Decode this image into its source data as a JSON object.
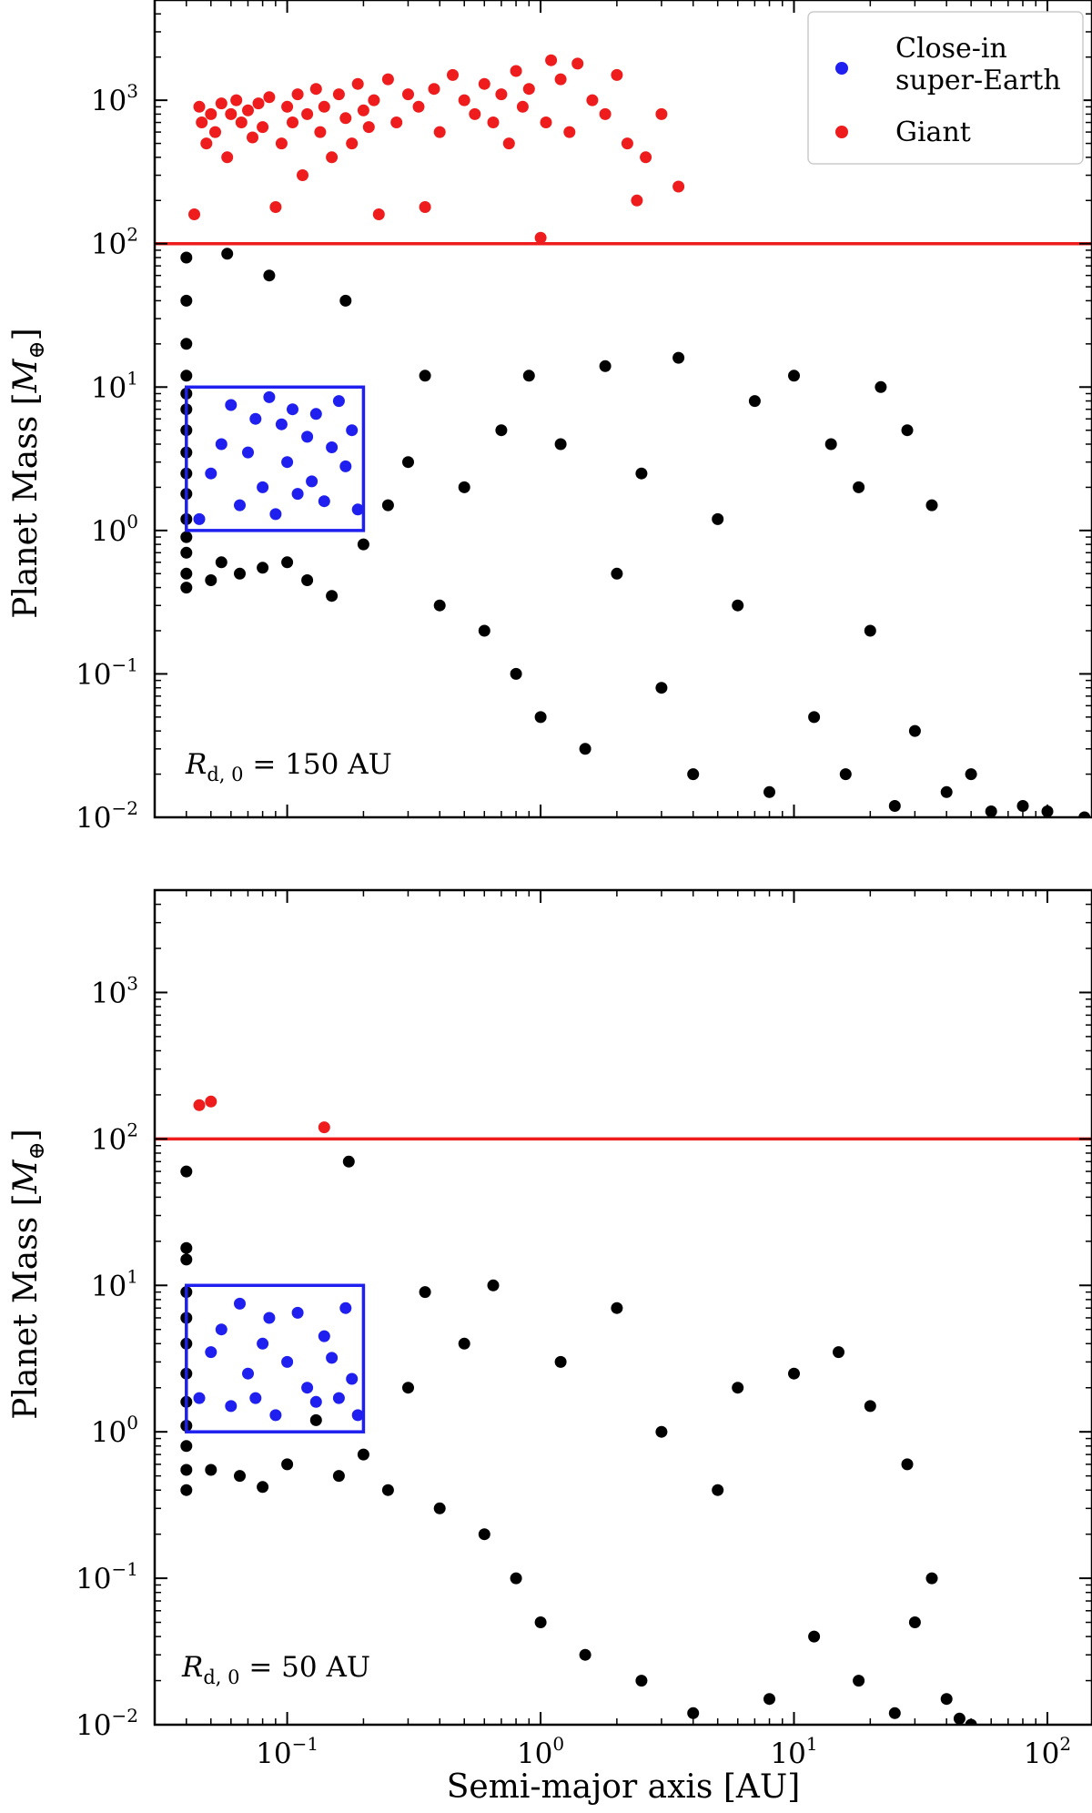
{
  "chart_data": [
    {
      "type": "scatter",
      "panel": "top",
      "xscale": "log",
      "yscale": "log",
      "xlim": [
        0.03,
        150
      ],
      "ylim": [
        0.01,
        5000
      ],
      "ylabel_parts": [
        "Planet Mass [",
        "M",
        "⊕",
        "]"
      ],
      "annotation": {
        "r_sym": "R",
        "r_sub": "d, 0",
        "text": " = 150 AU"
      },
      "hline": {
        "y": 100,
        "color": "#ee1c1c"
      },
      "box": {
        "x": [
          0.04,
          0.2
        ],
        "y": [
          1,
          10
        ],
        "color": "#1f1ff0"
      },
      "yticks": [
        {
          "base": "10",
          "exp": "−2",
          "value": 0.01
        },
        {
          "base": "10",
          "exp": "−1",
          "value": 0.1
        },
        {
          "base": "10",
          "exp": "0",
          "value": 1
        },
        {
          "base": "10",
          "exp": "1",
          "value": 10
        },
        {
          "base": "10",
          "exp": "2",
          "value": 100
        },
        {
          "base": "10",
          "exp": "3",
          "value": 1000
        }
      ],
      "legend": [
        {
          "lines": [
            "Close-in",
            "super-Earth"
          ],
          "color": "#1f1ff0"
        },
        {
          "lines": [
            "Giant"
          ],
          "color": "#ee1c1c"
        }
      ],
      "series": [
        {
          "color": "#ee1c1c",
          "points": [
            [
              0.043,
              160
            ],
            [
              0.045,
              900
            ],
            [
              0.046,
              700
            ],
            [
              0.048,
              500
            ],
            [
              0.05,
              800
            ],
            [
              0.052,
              600
            ],
            [
              0.055,
              950
            ],
            [
              0.058,
              400
            ],
            [
              0.06,
              800
            ],
            [
              0.063,
              1000
            ],
            [
              0.066,
              700
            ],
            [
              0.07,
              850
            ],
            [
              0.073,
              550
            ],
            [
              0.077,
              950
            ],
            [
              0.08,
              650
            ],
            [
              0.085,
              1050
            ],
            [
              0.09,
              180
            ],
            [
              0.095,
              500
            ],
            [
              0.1,
              900
            ],
            [
              0.105,
              700
            ],
            [
              0.11,
              1100
            ],
            [
              0.115,
              300
            ],
            [
              0.12,
              800
            ],
            [
              0.13,
              1200
            ],
            [
              0.135,
              600
            ],
            [
              0.14,
              900
            ],
            [
              0.15,
              400
            ],
            [
              0.16,
              1100
            ],
            [
              0.17,
              750
            ],
            [
              0.18,
              500
            ],
            [
              0.19,
              1300
            ],
            [
              0.2,
              850
            ],
            [
              0.21,
              650
            ],
            [
              0.22,
              1000
            ],
            [
              0.23,
              160
            ],
            [
              0.25,
              1400
            ],
            [
              0.27,
              700
            ],
            [
              0.3,
              1100
            ],
            [
              0.33,
              900
            ],
            [
              0.35,
              180
            ],
            [
              0.38,
              1200
            ],
            [
              0.4,
              600
            ],
            [
              0.45,
              1500
            ],
            [
              0.5,
              1000
            ],
            [
              0.55,
              800
            ],
            [
              0.6,
              1300
            ],
            [
              0.65,
              700
            ],
            [
              0.7,
              1100
            ],
            [
              0.75,
              500
            ],
            [
              0.8,
              1600
            ],
            [
              0.85,
              900
            ],
            [
              0.9,
              1200
            ],
            [
              1.0,
              110
            ],
            [
              1.05,
              700
            ],
            [
              1.1,
              1900
            ],
            [
              1.2,
              1400
            ],
            [
              1.3,
              600
            ],
            [
              1.4,
              1800
            ],
            [
              1.6,
              1000
            ],
            [
              1.8,
              800
            ],
            [
              2.0,
              1500
            ],
            [
              2.2,
              500
            ],
            [
              2.4,
              200
            ],
            [
              2.6,
              400
            ],
            [
              3.0,
              800
            ],
            [
              3.5,
              250
            ]
          ]
        },
        {
          "color": "#1f1ff0",
          "points": [
            [
              0.045,
              1.2
            ],
            [
              0.05,
              2.5
            ],
            [
              0.055,
              4.0
            ],
            [
              0.06,
              7.5
            ],
            [
              0.065,
              1.5
            ],
            [
              0.07,
              3.5
            ],
            [
              0.075,
              6.0
            ],
            [
              0.08,
              2.0
            ],
            [
              0.085,
              8.5
            ],
            [
              0.09,
              1.3
            ],
            [
              0.095,
              5.5
            ],
            [
              0.1,
              3.0
            ],
            [
              0.105,
              7.0
            ],
            [
              0.11,
              1.8
            ],
            [
              0.12,
              4.5
            ],
            [
              0.125,
              2.2
            ],
            [
              0.13,
              6.5
            ],
            [
              0.14,
              1.6
            ],
            [
              0.15,
              3.8
            ],
            [
              0.16,
              8.0
            ],
            [
              0.17,
              2.8
            ],
            [
              0.18,
              5.0
            ],
            [
              0.19,
              1.4
            ]
          ]
        },
        {
          "color": "#000000",
          "points": [
            [
              0.04,
              0.4
            ],
            [
              0.04,
              0.5
            ],
            [
              0.04,
              0.7
            ],
            [
              0.04,
              0.9
            ],
            [
              0.04,
              1.2
            ],
            [
              0.04,
              1.8
            ],
            [
              0.04,
              2.5
            ],
            [
              0.04,
              3.5
            ],
            [
              0.04,
              5.0
            ],
            [
              0.04,
              7.0
            ],
            [
              0.04,
              9.0
            ],
            [
              0.04,
              12
            ],
            [
              0.04,
              20
            ],
            [
              0.04,
              40
            ],
            [
              0.04,
              80
            ],
            [
              0.05,
              0.45
            ],
            [
              0.055,
              0.6
            ],
            [
              0.058,
              85
            ],
            [
              0.065,
              0.5
            ],
            [
              0.08,
              0.55
            ],
            [
              0.085,
              60
            ],
            [
              0.1,
              0.6
            ],
            [
              0.12,
              0.45
            ],
            [
              0.15,
              0.35
            ],
            [
              0.17,
              40
            ],
            [
              0.2,
              0.8
            ],
            [
              0.25,
              1.5
            ],
            [
              0.3,
              3.0
            ],
            [
              0.35,
              12
            ],
            [
              0.4,
              0.3
            ],
            [
              0.5,
              2.0
            ],
            [
              0.6,
              0.2
            ],
            [
              0.7,
              5.0
            ],
            [
              0.8,
              0.1
            ],
            [
              0.9,
              12
            ],
            [
              1.0,
              0.05
            ],
            [
              1.2,
              4.0
            ],
            [
              1.5,
              0.03
            ],
            [
              1.8,
              14
            ],
            [
              2.0,
              0.5
            ],
            [
              2.5,
              2.5
            ],
            [
              3.0,
              0.08
            ],
            [
              3.5,
              16
            ],
            [
              4.0,
              0.02
            ],
            [
              5.0,
              1.2
            ],
            [
              6.0,
              0.3
            ],
            [
              7.0,
              8.0
            ],
            [
              8.0,
              0.015
            ],
            [
              10,
              12
            ],
            [
              12,
              0.05
            ],
            [
              14,
              4.0
            ],
            [
              16,
              0.02
            ],
            [
              18,
              2.0
            ],
            [
              20,
              0.2
            ],
            [
              22,
              10
            ],
            [
              25,
              0.012
            ],
            [
              28,
              5.0
            ],
            [
              30,
              0.04
            ],
            [
              35,
              1.5
            ],
            [
              40,
              0.015
            ],
            [
              50,
              0.02
            ],
            [
              60,
              0.011
            ],
            [
              80,
              0.012
            ],
            [
              100,
              0.011
            ],
            [
              140,
              0.01
            ]
          ]
        }
      ]
    },
    {
      "type": "scatter",
      "panel": "bottom",
      "xscale": "log",
      "yscale": "log",
      "xlim": [
        0.03,
        150
      ],
      "ylim": [
        0.01,
        5000
      ],
      "xlabel": "Semi-major axis [AU]",
      "ylabel_parts": [
        "Planet Mass [",
        "M",
        "⊕",
        "]"
      ],
      "annotation": {
        "r_sym": "R",
        "r_sub": "d, 0",
        "text": " = 50 AU"
      },
      "hline": {
        "y": 100,
        "color": "#ee1c1c"
      },
      "box": {
        "x": [
          0.04,
          0.2
        ],
        "y": [
          1,
          10
        ],
        "color": "#1f1ff0"
      },
      "yticks": [
        {
          "base": "10",
          "exp": "−2",
          "value": 0.01
        },
        {
          "base": "10",
          "exp": "−1",
          "value": 0.1
        },
        {
          "base": "10",
          "exp": "0",
          "value": 1
        },
        {
          "base": "10",
          "exp": "1",
          "value": 10
        },
        {
          "base": "10",
          "exp": "2",
          "value": 100
        },
        {
          "base": "10",
          "exp": "3",
          "value": 1000
        }
      ],
      "xticks": [
        {
          "base": "10",
          "exp": "−1",
          "value": 0.1
        },
        {
          "base": "10",
          "exp": "0",
          "value": 1
        },
        {
          "base": "10",
          "exp": "1",
          "value": 10
        },
        {
          "base": "10",
          "exp": "2",
          "value": 100
        }
      ],
      "series": [
        {
          "color": "#ee1c1c",
          "points": [
            [
              0.045,
              170
            ],
            [
              0.05,
              180
            ],
            [
              0.14,
              120
            ]
          ]
        },
        {
          "color": "#1f1ff0",
          "points": [
            [
              0.045,
              1.7
            ],
            [
              0.05,
              3.5
            ],
            [
              0.055,
              5.0
            ],
            [
              0.06,
              1.5
            ],
            [
              0.065,
              7.5
            ],
            [
              0.07,
              2.5
            ],
            [
              0.075,
              1.7
            ],
            [
              0.08,
              4.0
            ],
            [
              0.085,
              6.0
            ],
            [
              0.09,
              1.3
            ],
            [
              0.1,
              3.0
            ],
            [
              0.11,
              6.5
            ],
            [
              0.12,
              2.0
            ],
            [
              0.13,
              1.6
            ],
            [
              0.14,
              4.5
            ],
            [
              0.15,
              3.2
            ],
            [
              0.16,
              1.7
            ],
            [
              0.17,
              7.0
            ],
            [
              0.18,
              2.3
            ],
            [
              0.19,
              1.3
            ]
          ]
        },
        {
          "color": "#000000",
          "points": [
            [
              0.04,
              0.4
            ],
            [
              0.04,
              0.55
            ],
            [
              0.04,
              0.8
            ],
            [
              0.04,
              1.1
            ],
            [
              0.04,
              1.6
            ],
            [
              0.04,
              2.5
            ],
            [
              0.04,
              4.0
            ],
            [
              0.04,
              6.0
            ],
            [
              0.04,
              9.0
            ],
            [
              0.04,
              15
            ],
            [
              0.04,
              18
            ],
            [
              0.04,
              60
            ],
            [
              0.05,
              0.55
            ],
            [
              0.065,
              0.5
            ],
            [
              0.08,
              0.42
            ],
            [
              0.1,
              0.6
            ],
            [
              0.13,
              1.2
            ],
            [
              0.16,
              0.5
            ],
            [
              0.175,
              70
            ],
            [
              0.2,
              0.7
            ],
            [
              0.25,
              0.4
            ],
            [
              0.3,
              2.0
            ],
            [
              0.35,
              9.0
            ],
            [
              0.4,
              0.3
            ],
            [
              0.5,
              4.0
            ],
            [
              0.6,
              0.2
            ],
            [
              0.65,
              10
            ],
            [
              0.8,
              0.1
            ],
            [
              1.0,
              0.05
            ],
            [
              1.2,
              3.0
            ],
            [
              1.5,
              0.03
            ],
            [
              2.0,
              7.0
            ],
            [
              2.5,
              0.02
            ],
            [
              3.0,
              1.0
            ],
            [
              4.0,
              0.012
            ],
            [
              5.0,
              0.4
            ],
            [
              6.0,
              2.0
            ],
            [
              8.0,
              0.015
            ],
            [
              10,
              2.5
            ],
            [
              12,
              0.04
            ],
            [
              15,
              3.5
            ],
            [
              18,
              0.02
            ],
            [
              20,
              1.5
            ],
            [
              25,
              0.012
            ],
            [
              28,
              0.6
            ],
            [
              30,
              0.05
            ],
            [
              35,
              0.1
            ],
            [
              40,
              0.015
            ],
            [
              45,
              0.011
            ],
            [
              50,
              0.01
            ]
          ]
        }
      ]
    }
  ]
}
